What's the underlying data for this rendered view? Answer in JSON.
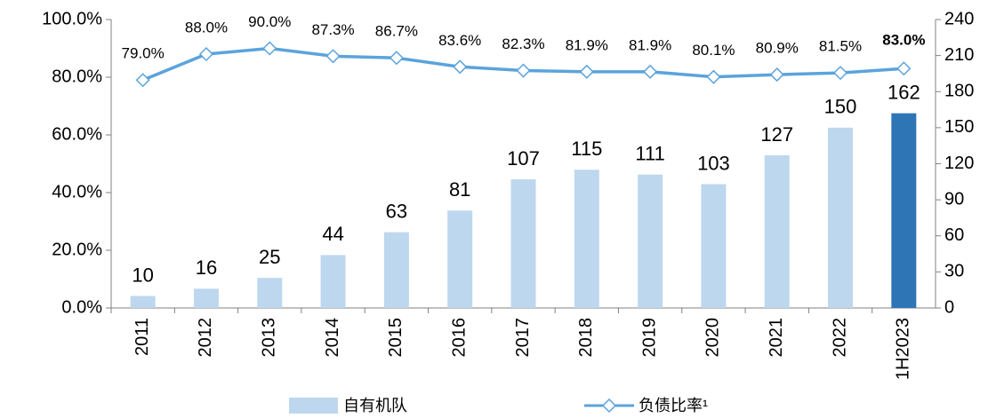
{
  "chart_data": {
    "type": "bar-line",
    "categories": [
      "2011",
      "2012",
      "2013",
      "2014",
      "2015",
      "2016",
      "2017",
      "2018",
      "2019",
      "2020",
      "2021",
      "2022",
      "1H2023"
    ],
    "series": [
      {
        "name": "自有机队",
        "type": "bar",
        "axis": "y2",
        "color": "#bdd7ee",
        "colors": [
          "#bdd7ee",
          "#bdd7ee",
          "#bdd7ee",
          "#bdd7ee",
          "#bdd7ee",
          "#bdd7ee",
          "#bdd7ee",
          "#bdd7ee",
          "#bdd7ee",
          "#bdd7ee",
          "#bdd7ee",
          "#bdd7ee",
          "#2e75b6"
        ],
        "values": [
          10,
          16,
          25,
          44,
          63,
          81,
          107,
          115,
          111,
          103,
          127,
          150,
          162
        ]
      },
      {
        "name": "负债比率¹",
        "type": "line",
        "axis": "y",
        "color": "#5ba3dc",
        "values": [
          79.0,
          88.0,
          90.0,
          87.3,
          86.7,
          83.6,
          82.3,
          81.9,
          81.9,
          80.1,
          80.9,
          81.5,
          83.0
        ],
        "value_labels": [
          "79.0%",
          "88.0%",
          "90.0%",
          "87.3%",
          "86.7%",
          "83.6%",
          "82.3%",
          "81.9%",
          "81.9%",
          "80.1%",
          "80.9%",
          "81.5%",
          "83.0%"
        ],
        "bold_value_labels": [
          12
        ]
      }
    ],
    "ylim": [
      0,
      100
    ],
    "yticks": [
      {
        "value": 0,
        "label": "0.0%"
      },
      {
        "value": 20,
        "label": "20.0%"
      },
      {
        "value": 40,
        "label": "40.0%"
      },
      {
        "value": 60,
        "label": "60.0%"
      },
      {
        "value": 80,
        "label": "80.0%"
      },
      {
        "value": 100,
        "label": "100.0%"
      }
    ],
    "y2lim": [
      0,
      240
    ],
    "y2ticks": [
      0,
      30,
      60,
      90,
      120,
      150,
      180,
      210,
      240
    ],
    "legend": "bottom"
  }
}
